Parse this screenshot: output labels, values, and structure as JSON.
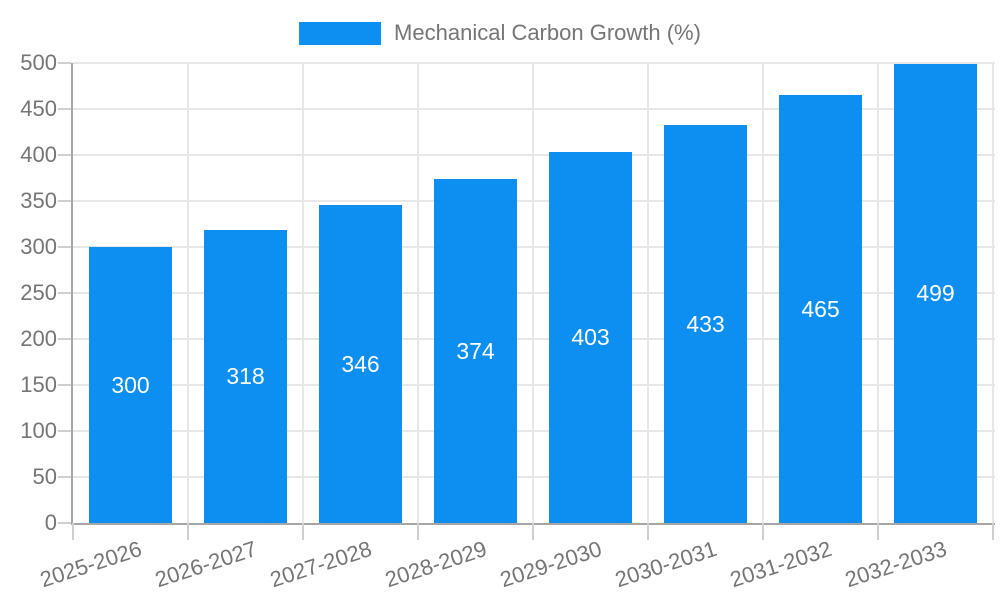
{
  "legend": {
    "label": "Mechanical Carbon Growth (%)"
  },
  "colors": {
    "bar": "#0d8ff2",
    "axis_line": "#a6a6a6",
    "gridline": "#e7e7e7",
    "tick": "#cfcfcf",
    "axis_text": "#757575",
    "value_label": "#ffffff",
    "background": "#ffffff"
  },
  "chart_data": {
    "type": "bar",
    "title": "",
    "xlabel": "",
    "ylabel": "",
    "series_name": "Mechanical Carbon Growth (%)",
    "categories": [
      "2025-2026",
      "2026-2027",
      "2027-2028",
      "2028-2029",
      "2029-2030",
      "2030-2031",
      "2031-2032",
      "2032-2033"
    ],
    "values": [
      300,
      318,
      346,
      374,
      403,
      433,
      465,
      499
    ],
    "value_labels_shown": true,
    "ylim": [
      0,
      500
    ],
    "ytick_step": 50,
    "ytick_labels": [
      "0",
      "50",
      "100",
      "150",
      "200",
      "250",
      "300",
      "350",
      "400",
      "450",
      "500"
    ],
    "grid": true,
    "legend_position": "top"
  }
}
